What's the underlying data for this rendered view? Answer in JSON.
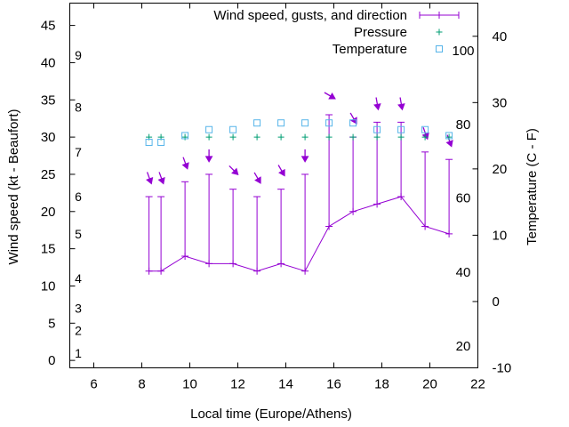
{
  "chart_data": {
    "type": "line",
    "xlabel": "Local time (Europe/Athens)",
    "ylabel_left": "Wind speed (kt - Beaufort)",
    "ylabel_right": "Temperature (C - F)",
    "xlim": [
      5,
      22
    ],
    "ylim_left": [
      -1,
      48
    ],
    "ylim_right": [
      -10,
      45
    ],
    "x_ticks": [
      6,
      8,
      10,
      12,
      14,
      16,
      18,
      20,
      22
    ],
    "y_left_ticks": [
      0,
      5,
      10,
      15,
      20,
      25,
      30,
      35,
      40,
      45
    ],
    "y_right_ticks": [
      -10,
      0,
      10,
      20,
      30,
      40
    ],
    "beaufort_labels": [
      {
        "label": "1",
        "at_kt": 1
      },
      {
        "label": "2",
        "at_kt": 4
      },
      {
        "label": "3",
        "at_kt": 7
      },
      {
        "label": "4",
        "at_kt": 11
      },
      {
        "label": "5",
        "at_kt": 17
      },
      {
        "label": "6",
        "at_kt": 22
      },
      {
        "label": "7",
        "at_kt": 28
      },
      {
        "label": "8",
        "at_kt": 34
      },
      {
        "label": "9",
        "at_kt": 41
      }
    ],
    "fahrenheit_labels": [
      {
        "label": "20",
        "at_c": -6.7
      },
      {
        "label": "40",
        "at_c": 4.4
      },
      {
        "label": "60",
        "at_c": 15.6
      },
      {
        "label": "80",
        "at_c": 26.7
      },
      {
        "label": "100",
        "at_c": 37.8
      }
    ],
    "legend": {
      "placement": "top-right",
      "wind": "Wind speed, gusts, and direction",
      "pressure": "Pressure",
      "temperature": "Temperature"
    },
    "series": [
      {
        "name": "Wind speed, gusts, and direction",
        "color": "#9400d3",
        "points": [
          {
            "x": 8.3,
            "speed": 12,
            "gust": 22,
            "dir": 340
          },
          {
            "x": 8.8,
            "speed": 12,
            "gust": 22,
            "dir": 340
          },
          {
            "x": 9.8,
            "speed": 14,
            "gust": 24,
            "dir": 340
          },
          {
            "x": 10.8,
            "speed": 13,
            "gust": 25,
            "dir": 0
          },
          {
            "x": 11.8,
            "speed": 13,
            "gust": 23,
            "dir": 315
          },
          {
            "x": 12.8,
            "speed": 12,
            "gust": 22,
            "dir": 330
          },
          {
            "x": 13.8,
            "speed": 13,
            "gust": 23,
            "dir": 330
          },
          {
            "x": 14.8,
            "speed": 12,
            "gust": 25,
            "dir": 0
          },
          {
            "x": 15.8,
            "speed": 18,
            "gust": 33,
            "dir": 300
          },
          {
            "x": 16.8,
            "speed": 20,
            "gust": 30,
            "dir": 330
          },
          {
            "x": 17.8,
            "speed": 21,
            "gust": 32,
            "dir": 350
          },
          {
            "x": 18.8,
            "speed": 22,
            "gust": 32,
            "dir": 350
          },
          {
            "x": 19.8,
            "speed": 18,
            "gust": 28,
            "dir": 340
          },
          {
            "x": 20.8,
            "speed": 17,
            "gust": 27,
            "dir": 340
          }
        ]
      },
      {
        "name": "Pressure",
        "color": "#009e73",
        "points": [
          {
            "x": 8.3,
            "y": 30
          },
          {
            "x": 8.8,
            "y": 30
          },
          {
            "x": 9.8,
            "y": 30
          },
          {
            "x": 10.8,
            "y": 30
          },
          {
            "x": 11.8,
            "y": 30
          },
          {
            "x": 12.8,
            "y": 30
          },
          {
            "x": 13.8,
            "y": 30
          },
          {
            "x": 14.8,
            "y": 30
          },
          {
            "x": 15.8,
            "y": 30
          },
          {
            "x": 16.8,
            "y": 30
          },
          {
            "x": 17.8,
            "y": 30
          },
          {
            "x": 18.8,
            "y": 30
          },
          {
            "x": 19.8,
            "y": 30
          },
          {
            "x": 20.8,
            "y": 30
          }
        ]
      },
      {
        "name": "Temperature",
        "color": "#56b4e9",
        "points": [
          {
            "x": 8.3,
            "y": 29.3
          },
          {
            "x": 8.8,
            "y": 29.3
          },
          {
            "x": 9.8,
            "y": 30.2
          },
          {
            "x": 10.8,
            "y": 31
          },
          {
            "x": 11.8,
            "y": 31
          },
          {
            "x": 12.8,
            "y": 31.9
          },
          {
            "x": 13.8,
            "y": 31.9
          },
          {
            "x": 14.8,
            "y": 31.9
          },
          {
            "x": 15.8,
            "y": 31.9
          },
          {
            "x": 16.8,
            "y": 31.9
          },
          {
            "x": 17.8,
            "y": 31
          },
          {
            "x": 18.8,
            "y": 31
          },
          {
            "x": 19.8,
            "y": 31
          },
          {
            "x": 20.8,
            "y": 30.2
          }
        ]
      }
    ]
  }
}
